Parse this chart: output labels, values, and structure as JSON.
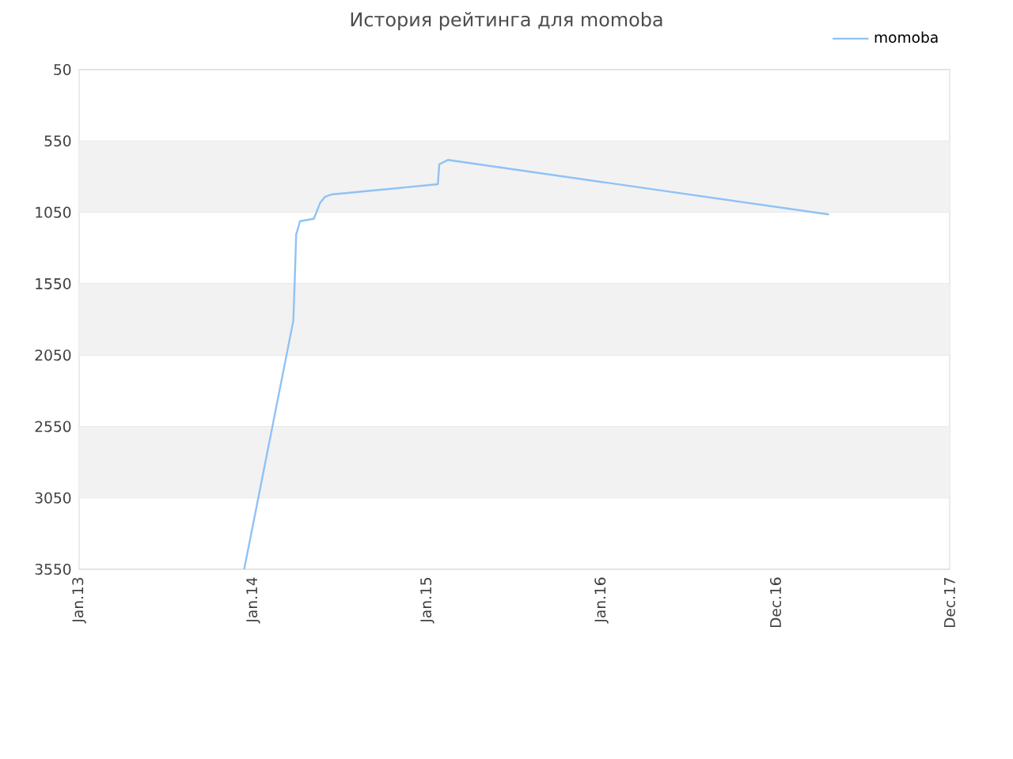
{
  "chart_data": {
    "type": "line",
    "title": "История рейтинга для momoba",
    "x": [
      "2013-12-13",
      "2014-03-26",
      "2014-03-29",
      "2014-04-01",
      "2014-04-09",
      "2014-05-08",
      "2014-05-21",
      "2014-05-31",
      "2014-06-13",
      "2015-01-23",
      "2015-01-26",
      "2015-02-13",
      "2017-04-22"
    ],
    "series": [
      {
        "name": "momoba",
        "color": "#8ec3f5",
        "values": [
          3550,
          1809,
          1524,
          1205,
          1112,
          1095,
          985,
          942,
          925,
          853,
          713,
          683,
          1065
        ]
      }
    ],
    "xlim": [
      "2013-01-01",
      "2017-12-31"
    ],
    "xticks": [
      {
        "value": "2013-01-01",
        "label": "Jan.13"
      },
      {
        "value": "2014-01-01",
        "label": "Jan.14"
      },
      {
        "value": "2015-01-01",
        "label": "Jan.15"
      },
      {
        "value": "2016-01-01",
        "label": "Jan.16"
      },
      {
        "value": "2016-12-31",
        "label": "Dec.16"
      },
      {
        "value": "2017-12-31",
        "label": "Dec.17"
      }
    ],
    "ylim": [
      3550,
      50
    ],
    "yticks": [
      50,
      550,
      1050,
      1550,
      2050,
      2550,
      3050,
      3550
    ],
    "grid": "y",
    "legend": "top right",
    "marker": "none",
    "line_style": "solid"
  }
}
